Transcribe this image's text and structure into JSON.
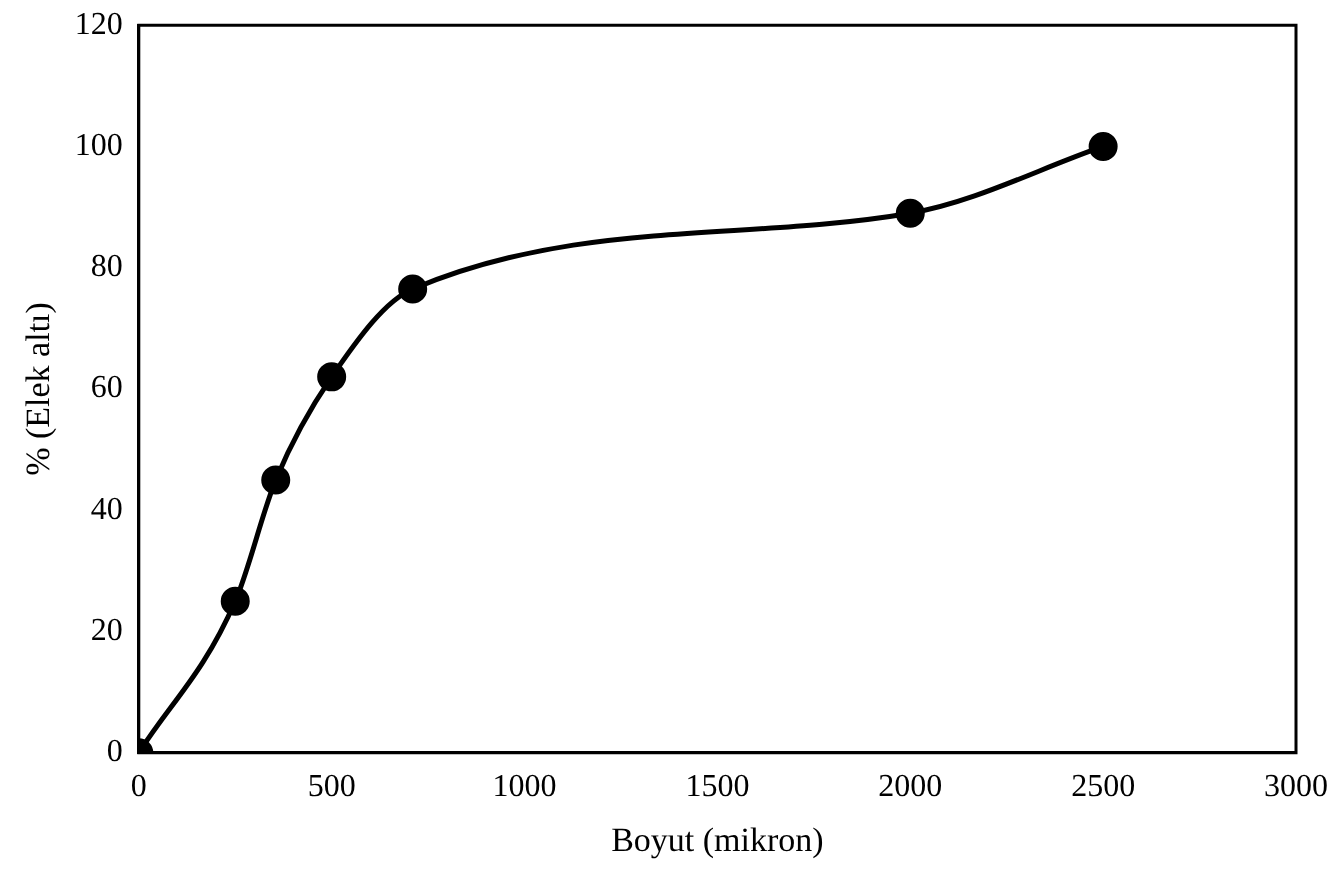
{
  "chart_data": {
    "type": "line",
    "xlabel": "Boyut (mikron)",
    "ylabel": "% (Elek altı)",
    "x": [
      0,
      250,
      355,
      500,
      710,
      2000,
      2500
    ],
    "series": [
      {
        "color": "#000000",
        "values": [
          0,
          25,
          45,
          62,
          76.5,
          89,
          100
        ]
      }
    ],
    "xlim": [
      0,
      3000
    ],
    "xticks": [
      0,
      500,
      1000,
      1500,
      2000,
      2500,
      3000
    ],
    "ylim": [
      0,
      120
    ],
    "yticks": [
      0,
      20,
      40,
      60,
      80,
      100,
      120
    ],
    "grid": false,
    "legend": false,
    "marker": "circle",
    "line_style": "solid"
  }
}
